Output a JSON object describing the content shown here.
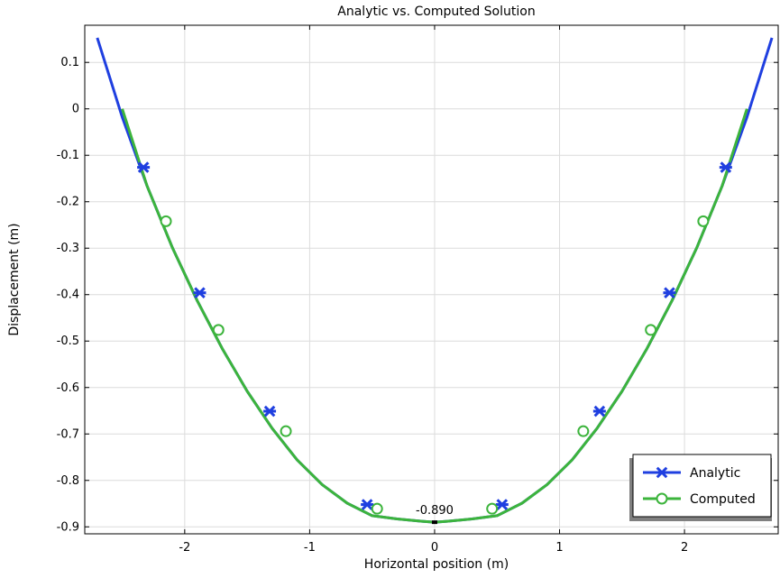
{
  "chart_data": {
    "type": "line",
    "title": "Analytic vs. Computed Solution",
    "xlabel": "Horizontal position (m)",
    "ylabel": "Displacement (m)",
    "xlim": [
      -2.8,
      2.75
    ],
    "ylim": [
      -0.915,
      0.18
    ],
    "xticks": [
      -2,
      -1,
      0,
      1,
      2
    ],
    "xtick_labels": [
      "-2",
      "-1",
      "0",
      "1",
      "2"
    ],
    "yticks": [
      0.1,
      0,
      -0.1,
      -0.2,
      -0.3,
      -0.4,
      -0.5,
      -0.6,
      -0.7,
      -0.8,
      -0.9
    ],
    "ytick_labels": [
      "0.1",
      "0",
      "-0.1",
      "-0.2",
      "-0.3",
      "-0.4",
      "-0.5",
      "-0.6",
      "-0.7",
      "-0.8",
      "-0.9"
    ],
    "grid": true,
    "legend_position": "bottom-right",
    "series": [
      {
        "name": "Analytic",
        "color": "#1f3fe0",
        "marker": "asterisk",
        "line_x": [
          -2.7,
          -2.5,
          -2.3,
          -2.1,
          -1.9,
          -1.7,
          -1.5,
          -1.3,
          -1.1,
          -0.9,
          -0.7,
          -0.5,
          -0.3,
          -0.1,
          0,
          0.1,
          0.3,
          0.5,
          0.7,
          0.9,
          1.1,
          1.3,
          1.5,
          1.7,
          1.9,
          2.1,
          2.3,
          2.5,
          2.7
        ],
        "line_y": [
          0.153,
          -0.018,
          -0.167,
          -0.298,
          -0.413,
          -0.516,
          -0.608,
          -0.688,
          -0.756,
          -0.809,
          -0.849,
          -0.876,
          -0.883,
          -0.888,
          -0.89,
          -0.888,
          -0.883,
          -0.876,
          -0.849,
          -0.809,
          -0.756,
          -0.688,
          -0.608,
          -0.516,
          -0.413,
          -0.298,
          -0.167,
          -0.018,
          0.153
        ],
        "marker_x": [
          -2.33,
          -1.88,
          -1.32,
          -0.54,
          0.54,
          1.32,
          1.88,
          2.33
        ],
        "marker_y": [
          -0.126,
          -0.396,
          -0.651,
          -0.852,
          -0.852,
          -0.651,
          -0.396,
          -0.126
        ]
      },
      {
        "name": "Computed",
        "color": "#3cb43c",
        "marker": "circle",
        "line_x": [
          -2.5,
          -2.3,
          -2.1,
          -1.9,
          -1.7,
          -1.5,
          -1.3,
          -1.1,
          -0.9,
          -0.7,
          -0.5,
          -0.3,
          -0.1,
          0,
          0.1,
          0.3,
          0.5,
          0.7,
          0.9,
          1.1,
          1.3,
          1.5,
          1.7,
          1.9,
          2.1,
          2.3,
          2.5
        ],
        "line_y": [
          0.0,
          -0.167,
          -0.298,
          -0.413,
          -0.516,
          -0.608,
          -0.688,
          -0.756,
          -0.809,
          -0.849,
          -0.876,
          -0.883,
          -0.888,
          -0.89,
          -0.888,
          -0.883,
          -0.876,
          -0.849,
          -0.809,
          -0.756,
          -0.688,
          -0.608,
          -0.516,
          -0.413,
          -0.298,
          -0.167,
          0.0
        ],
        "marker_x": [
          -2.15,
          -1.73,
          -1.19,
          -0.46,
          0.46,
          1.19,
          1.73,
          2.15
        ],
        "marker_y": [
          -0.242,
          -0.476,
          -0.694,
          -0.861,
          -0.861,
          -0.694,
          -0.476,
          -0.242
        ]
      }
    ],
    "annotations": [
      {
        "text": "-0.890",
        "x": 0,
        "y": -0.89
      }
    ]
  }
}
